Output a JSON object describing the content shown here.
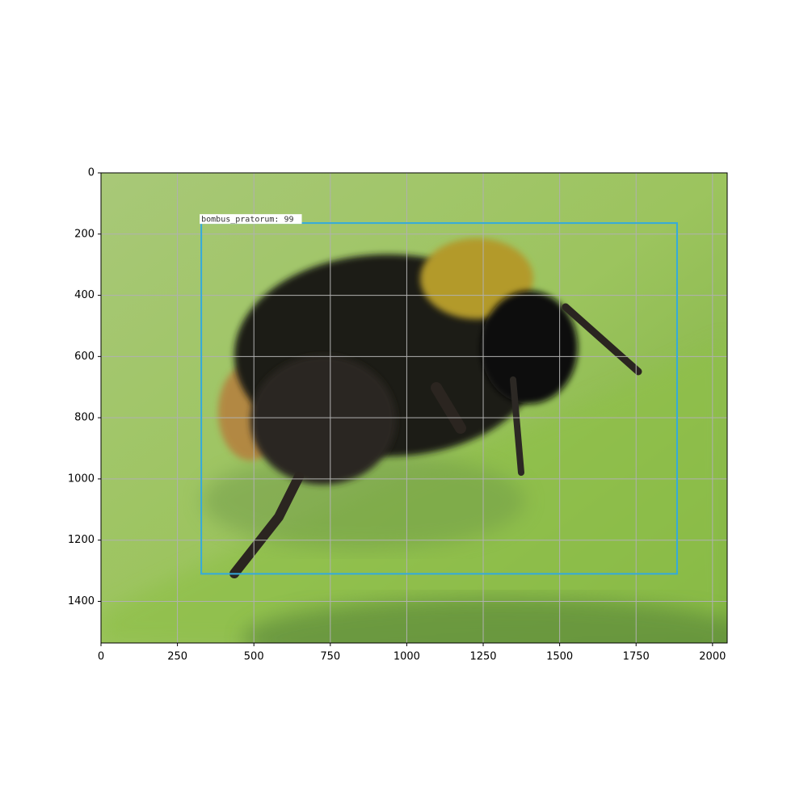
{
  "chart_data": {
    "type": "image",
    "xlim": [
      0,
      2048
    ],
    "ylim": [
      1536,
      0
    ],
    "xticks": [
      0,
      250,
      500,
      750,
      1000,
      1250,
      1500,
      1750,
      2000
    ],
    "yticks": [
      0,
      200,
      400,
      600,
      800,
      1000,
      1200,
      1400
    ],
    "grid": true,
    "boxes": [
      {
        "label": "bombus_pratorum: 99",
        "x": [
          328,
          1884
        ],
        "y": [
          164,
          1310
        ],
        "color": "#33aadd"
      }
    ]
  }
}
